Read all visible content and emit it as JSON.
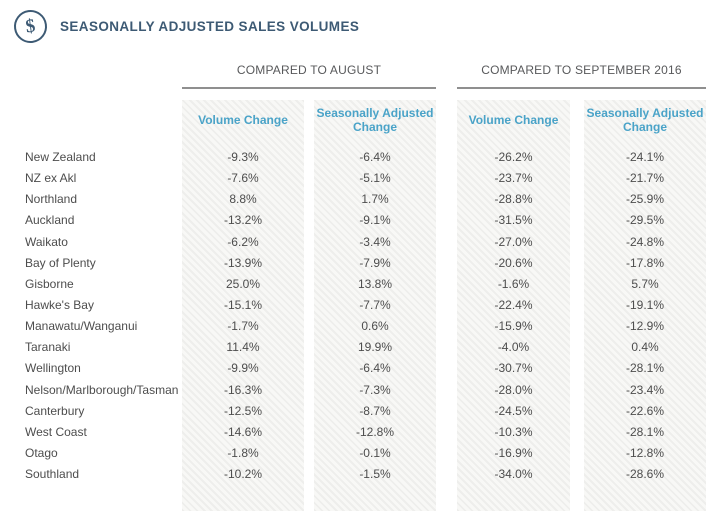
{
  "header": {
    "icon": "dollar-circle-icon",
    "title": "SEASONALLY ADJUSTED SALES VOLUMES"
  },
  "table": {
    "groups": [
      {
        "label": "COMPARED TO AUGUST",
        "columns": [
          "Volume Change",
          "Seasonally Adjusted Change"
        ]
      },
      {
        "label": "COMPARED TO SEPTEMBER 2016",
        "columns": [
          "Volume Change",
          "Seasonally Adjusted Change"
        ]
      }
    ],
    "rows": [
      {
        "region": "New Zealand",
        "aug_volume": "-9.3%",
        "aug_adjusted": "-6.4%",
        "sep_volume": "-26.2%",
        "sep_adjusted": "-24.1%"
      },
      {
        "region": "NZ ex Akl",
        "aug_volume": "-7.6%",
        "aug_adjusted": "-5.1%",
        "sep_volume": "-23.7%",
        "sep_adjusted": "-21.7%"
      },
      {
        "region": "Northland",
        "aug_volume": "8.8%",
        "aug_adjusted": "1.7%",
        "sep_volume": "-28.8%",
        "sep_adjusted": "-25.9%"
      },
      {
        "region": "Auckland",
        "aug_volume": "-13.2%",
        "aug_adjusted": "-9.1%",
        "sep_volume": "-31.5%",
        "sep_adjusted": "-29.5%"
      },
      {
        "region": "Waikato",
        "aug_volume": "-6.2%",
        "aug_adjusted": "-3.4%",
        "sep_volume": "-27.0%",
        "sep_adjusted": "-24.8%"
      },
      {
        "region": "Bay of Plenty",
        "aug_volume": "-13.9%",
        "aug_adjusted": "-7.9%",
        "sep_volume": "-20.6%",
        "sep_adjusted": "-17.8%"
      },
      {
        "region": "Gisborne",
        "aug_volume": "25.0%",
        "aug_adjusted": "13.8%",
        "sep_volume": "-1.6%",
        "sep_adjusted": "5.7%"
      },
      {
        "region": "Hawke's Bay",
        "aug_volume": "-15.1%",
        "aug_adjusted": "-7.7%",
        "sep_volume": "-22.4%",
        "sep_adjusted": "-19.1%"
      },
      {
        "region": "Manawatu/Wanganui",
        "aug_volume": "-1.7%",
        "aug_adjusted": "0.6%",
        "sep_volume": "-15.9%",
        "sep_adjusted": "-12.9%"
      },
      {
        "region": "Taranaki",
        "aug_volume": "11.4%",
        "aug_adjusted": "19.9%",
        "sep_volume": "-4.0%",
        "sep_adjusted": "0.4%"
      },
      {
        "region": "Wellington",
        "aug_volume": "-9.9%",
        "aug_adjusted": "-6.4%",
        "sep_volume": "-30.7%",
        "sep_adjusted": "-28.1%"
      },
      {
        "region": "Nelson/Marlborough/Tasman",
        "aug_volume": "-16.3%",
        "aug_adjusted": "-7.3%",
        "sep_volume": "-28.0%",
        "sep_adjusted": "-23.4%"
      },
      {
        "region": "Canterbury",
        "aug_volume": "-12.5%",
        "aug_adjusted": "-8.7%",
        "sep_volume": "-24.5%",
        "sep_adjusted": "-22.6%"
      },
      {
        "region": "West Coast",
        "aug_volume": "-14.6%",
        "aug_adjusted": "-12.8%",
        "sep_volume": "-10.3%",
        "sep_adjusted": "-28.1%"
      },
      {
        "region": "Otago",
        "aug_volume": "-1.8%",
        "aug_adjusted": "-0.1%",
        "sep_volume": "-16.9%",
        "sep_adjusted": "-12.8%"
      },
      {
        "region": "Southland",
        "aug_volume": "-10.2%",
        "aug_adjusted": "-1.5%",
        "sep_volume": "-34.0%",
        "sep_adjusted": "-28.6%"
      }
    ]
  },
  "colors": {
    "accent_navy": "#3d5a74",
    "accent_blue": "#4aa3c8",
    "group_header_gray": "#58595b",
    "body_text": "#4d4d4d"
  }
}
